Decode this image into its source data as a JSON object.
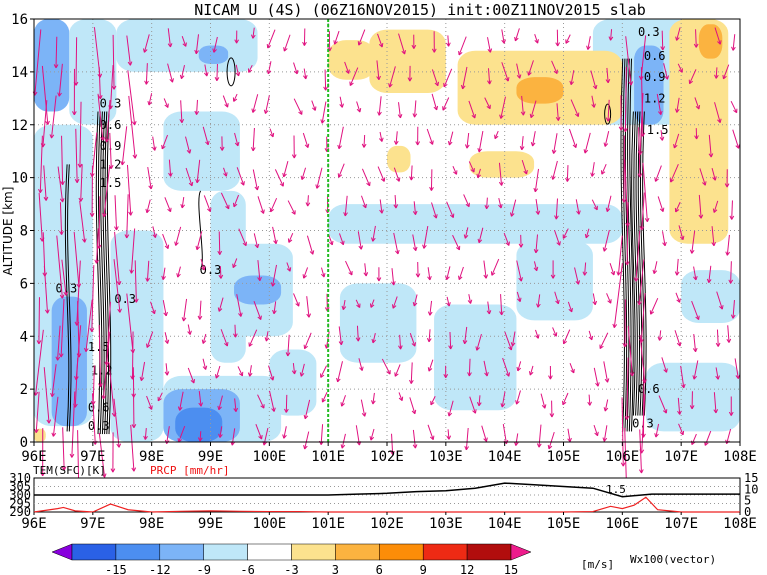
{
  "title": "NICAM U (4S) (06Z16NOV2015) init:00Z11NOV2015 slab",
  "colors": {
    "vector": "#e0117f",
    "marker_line": "#22bb22",
    "precip_line": "#ee2222",
    "temp_line": "#000000"
  },
  "chart_data": [
    {
      "type": "heatmap",
      "variable": "U",
      "units": "[m/s]",
      "xlabel": "",
      "ylabel": "ALTITUDE [km]",
      "x_tick_labels": [
        "96E",
        "97E",
        "98E",
        "99E",
        "100E",
        "101E",
        "102E",
        "103E",
        "104E",
        "105E",
        "106E",
        "107E",
        "108E"
      ],
      "x_ticks": [
        96,
        97,
        98,
        99,
        100,
        101,
        102,
        103,
        104,
        105,
        106,
        107,
        108
      ],
      "y_ticks": [
        0,
        2,
        4,
        6,
        8,
        10,
        12,
        14,
        16
      ],
      "xlim": [
        96,
        108
      ],
      "ylim": [
        0,
        16
      ],
      "marker_line_x": 101,
      "colorbar": {
        "levels": [
          "-15",
          "-12",
          "-9",
          "-6",
          "-3",
          "3",
          "6",
          "9",
          "12",
          "15"
        ],
        "colors": [
          "#8800dd",
          "#2a61e6",
          "#4c8ef0",
          "#7cb4f7",
          "#bfe7f8",
          "#ffffff",
          "#fce28e",
          "#fbb340",
          "#fc8d08",
          "#ee2a14",
          "#b10d0d",
          "#ee1c8c"
        ],
        "units_label": "[m/s]"
      },
      "contour_labels": [
        "0.3",
        "0.6",
        "0.9",
        "1.2",
        "1.5"
      ],
      "vector_label": "Wx100(vector)",
      "shaded_regions": [
        {
          "x0": 96.0,
          "x1": 96.6,
          "y0": 12.5,
          "y1": 16,
          "value": -6
        },
        {
          "x0": 96.6,
          "x1": 97.4,
          "y0": 12.0,
          "y1": 16,
          "value": -4
        },
        {
          "x0": 97.4,
          "x1": 99.8,
          "y0": 14.0,
          "y1": 16,
          "value": -4
        },
        {
          "x0": 98.8,
          "x1": 99.3,
          "y0": 14.3,
          "y1": 15.0,
          "value": -7
        },
        {
          "x0": 98.2,
          "x1": 99.5,
          "y0": 9.5,
          "y1": 12.5,
          "value": -4
        },
        {
          "x0": 99.0,
          "x1": 99.6,
          "y0": 3.0,
          "y1": 9.5,
          "value": -4
        },
        {
          "x0": 96.0,
          "x1": 97.0,
          "y0": 0.6,
          "y1": 12.0,
          "value": -4
        },
        {
          "x0": 96.3,
          "x1": 96.9,
          "y0": 0.6,
          "y1": 5.5,
          "value": -7
        },
        {
          "x0": 97.3,
          "x1": 98.2,
          "y0": 0.0,
          "y1": 8.0,
          "value": -4
        },
        {
          "x0": 98.2,
          "x1": 100.2,
          "y0": 0.0,
          "y1": 2.5,
          "value": -4
        },
        {
          "x0": 98.2,
          "x1": 99.5,
          "y0": 0.0,
          "y1": 2.0,
          "value": -7
        },
        {
          "x0": 98.4,
          "x1": 99.2,
          "y0": 0.0,
          "y1": 1.3,
          "value": -10
        },
        {
          "x0": 99.2,
          "x1": 100.4,
          "y0": 4.0,
          "y1": 7.5,
          "value": -4
        },
        {
          "x0": 99.4,
          "x1": 100.2,
          "y0": 5.2,
          "y1": 6.3,
          "value": -7
        },
        {
          "x0": 100.0,
          "x1": 100.8,
          "y0": 1.0,
          "y1": 3.5,
          "value": -4
        },
        {
          "x0": 101.2,
          "x1": 102.5,
          "y0": 3.0,
          "y1": 6.0,
          "value": -4
        },
        {
          "x0": 102.8,
          "x1": 104.2,
          "y0": 1.2,
          "y1": 5.2,
          "value": -4
        },
        {
          "x0": 104.2,
          "x1": 105.5,
          "y0": 4.6,
          "y1": 7.6,
          "value": -4
        },
        {
          "x0": 101.0,
          "x1": 106.0,
          "y0": 7.5,
          "y1": 9.0,
          "value": -4
        },
        {
          "x0": 106.4,
          "x1": 108.0,
          "y0": 0.4,
          "y1": 3.0,
          "value": -4
        },
        {
          "x0": 107.0,
          "x1": 108.0,
          "y0": 4.5,
          "y1": 6.5,
          "value": -4
        },
        {
          "x0": 105.5,
          "x1": 107.2,
          "y0": 12.0,
          "y1": 16,
          "value": -4
        },
        {
          "x0": 106.2,
          "x1": 106.7,
          "y0": 12.0,
          "y1": 15.0,
          "value": -7
        },
        {
          "x0": 101.0,
          "x1": 101.8,
          "y0": 13.7,
          "y1": 15.2,
          "value": 4
        },
        {
          "x0": 101.7,
          "x1": 103.0,
          "y0": 13.2,
          "y1": 15.6,
          "value": 4
        },
        {
          "x0": 103.2,
          "x1": 106.0,
          "y0": 12.0,
          "y1": 14.8,
          "value": 4
        },
        {
          "x0": 104.2,
          "x1": 105.0,
          "y0": 12.8,
          "y1": 13.8,
          "value": 7
        },
        {
          "x0": 102.0,
          "x1": 102.4,
          "y0": 10.2,
          "y1": 11.2,
          "value": 4
        },
        {
          "x0": 103.4,
          "x1": 104.5,
          "y0": 10.0,
          "y1": 11.0,
          "value": 4
        },
        {
          "x0": 106.8,
          "x1": 107.8,
          "y0": 7.5,
          "y1": 16,
          "value": 4
        },
        {
          "x0": 107.3,
          "x1": 107.7,
          "y0": 14.5,
          "y1": 15.8,
          "value": 7
        },
        {
          "x0": 96.0,
          "x1": 96.2,
          "y0": 0.0,
          "y1": 0.5,
          "value": 4
        }
      ]
    },
    {
      "type": "line",
      "x_tick_labels": [
        "96E",
        "97E",
        "98E",
        "99E",
        "100E",
        "101E",
        "102E",
        "103E",
        "104E",
        "105E",
        "106E",
        "107E",
        "108E"
      ],
      "xlim": [
        96,
        108
      ],
      "series": [
        {
          "name": "TEM(SFC)[K]",
          "axis": "left",
          "ylim": [
            290,
            310
          ],
          "ticks": [
            "310",
            "305",
            "300",
            "295",
            "290"
          ],
          "x": [
            96,
            97,
            98,
            99,
            100,
            101,
            101.5,
            102,
            102.5,
            103,
            103.5,
            104,
            104.5,
            105,
            105.5,
            106,
            106.5,
            107,
            108
          ],
          "y": [
            300,
            300,
            300,
            300,
            300,
            300,
            300.5,
            301,
            302,
            302.5,
            304,
            307,
            306,
            305,
            304,
            299,
            300.5,
            300.5,
            300.5
          ]
        },
        {
          "name": "PRCP [mm/hr]",
          "axis": "right",
          "ylim": [
            0,
            15
          ],
          "ticks": [
            "15",
            "10",
            "5",
            "0"
          ],
          "x": [
            96,
            96.4,
            96.5,
            96.7,
            97,
            97.3,
            97.6,
            98,
            98.5,
            99,
            99.5,
            100,
            100.5,
            101,
            102,
            103,
            104,
            105,
            105.5,
            105.8,
            106,
            106.2,
            106.4,
            106.6,
            107,
            108
          ],
          "y": [
            0,
            1.5,
            2.0,
            0.5,
            0,
            3.5,
            1.0,
            0,
            0.3,
            0.5,
            0.3,
            0.2,
            0.2,
            0,
            0,
            0,
            0,
            0,
            0.2,
            2.5,
            1.5,
            3.0,
            6.5,
            1.0,
            0,
            0
          ]
        }
      ],
      "annotation": "1.5"
    }
  ]
}
